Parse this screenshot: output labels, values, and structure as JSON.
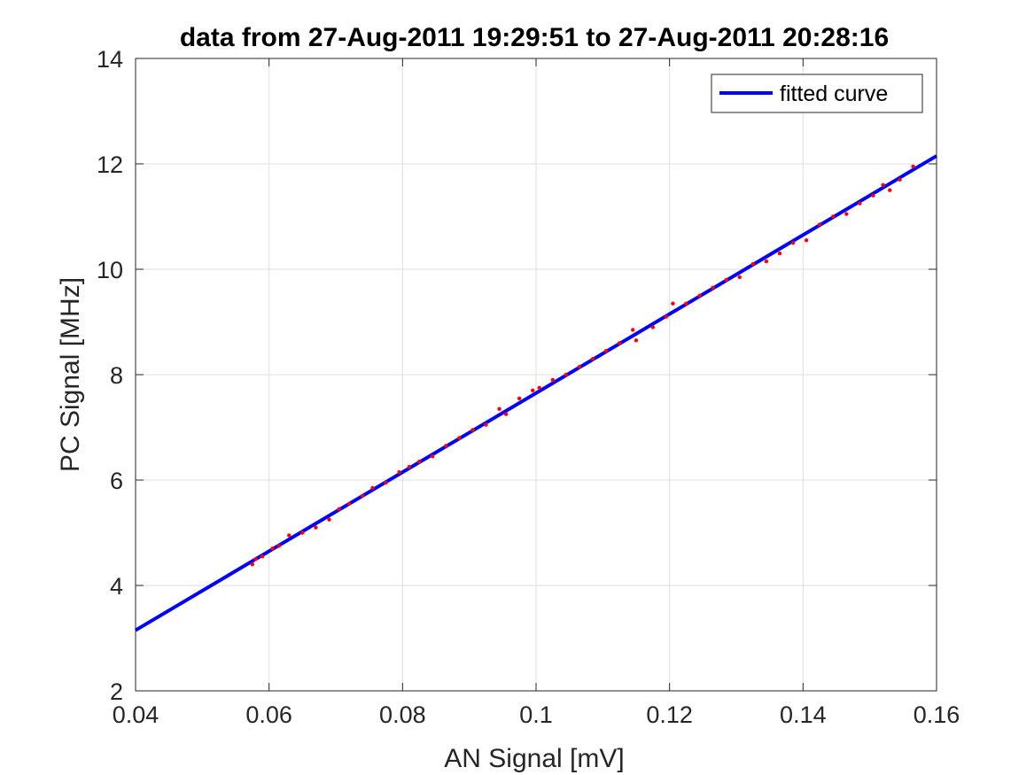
{
  "chart_data": {
    "type": "scatter",
    "title": "data from 27-Aug-2011 19:29:51 to 27-Aug-2011 20:28:16",
    "xlabel": "AN Signal [mV]",
    "ylabel": "PC Signal [MHz]",
    "xlim": [
      0.04,
      0.16
    ],
    "ylim": [
      2,
      14
    ],
    "xticks": [
      0.04,
      0.06,
      0.08,
      0.1,
      0.12,
      0.14,
      0.16
    ],
    "xtick_labels": [
      "0.04",
      "0.06",
      "0.08",
      "0.1",
      "0.12",
      "0.14",
      "0.16"
    ],
    "yticks": [
      2,
      4,
      6,
      8,
      10,
      12,
      14
    ],
    "ytick_labels": [
      "2",
      "4",
      "6",
      "8",
      "10",
      "12",
      "14"
    ],
    "grid": true,
    "legend": {
      "position": "top-right",
      "entries": [
        "fitted curve"
      ]
    },
    "series": [
      {
        "name": "fitted curve",
        "kind": "line",
        "color": "#0000FF",
        "x": [
          0.04,
          0.16
        ],
        "y": [
          3.15,
          12.15
        ]
      },
      {
        "kind": "scatter",
        "color": "#FF0000",
        "x": [
          0.0575,
          0.058,
          0.059,
          0.0605,
          0.0615,
          0.063,
          0.065,
          0.067,
          0.069,
          0.0705,
          0.072,
          0.074,
          0.0755,
          0.0775,
          0.0795,
          0.081,
          0.0825,
          0.0845,
          0.0865,
          0.0885,
          0.0905,
          0.0925,
          0.0945,
          0.0955,
          0.0975,
          0.0995,
          0.1005,
          0.1025,
          0.1045,
          0.1065,
          0.1085,
          0.1105,
          0.1125,
          0.1145,
          0.115,
          0.1175,
          0.1195,
          0.1205,
          0.1225,
          0.1245,
          0.1265,
          0.1285,
          0.1305,
          0.1325,
          0.1345,
          0.1365,
          0.1385,
          0.1405,
          0.1425,
          0.1445,
          0.1465,
          0.1485,
          0.1505,
          0.152,
          0.153,
          0.1545,
          0.1565
        ],
        "y": [
          4.4,
          4.5,
          4.55,
          4.7,
          4.75,
          4.95,
          5.0,
          5.1,
          5.25,
          5.45,
          5.55,
          5.7,
          5.85,
          5.95,
          6.15,
          6.25,
          6.35,
          6.45,
          6.65,
          6.8,
          6.95,
          7.05,
          7.35,
          7.25,
          7.55,
          7.7,
          7.75,
          7.9,
          8.0,
          8.15,
          8.3,
          8.45,
          8.6,
          8.85,
          8.65,
          8.9,
          9.1,
          9.35,
          9.35,
          9.5,
          9.65,
          9.8,
          9.85,
          10.1,
          10.15,
          10.3,
          10.5,
          10.55,
          10.85,
          11.0,
          11.05,
          11.25,
          11.4,
          11.6,
          11.5,
          11.7,
          11.95
        ]
      }
    ]
  }
}
